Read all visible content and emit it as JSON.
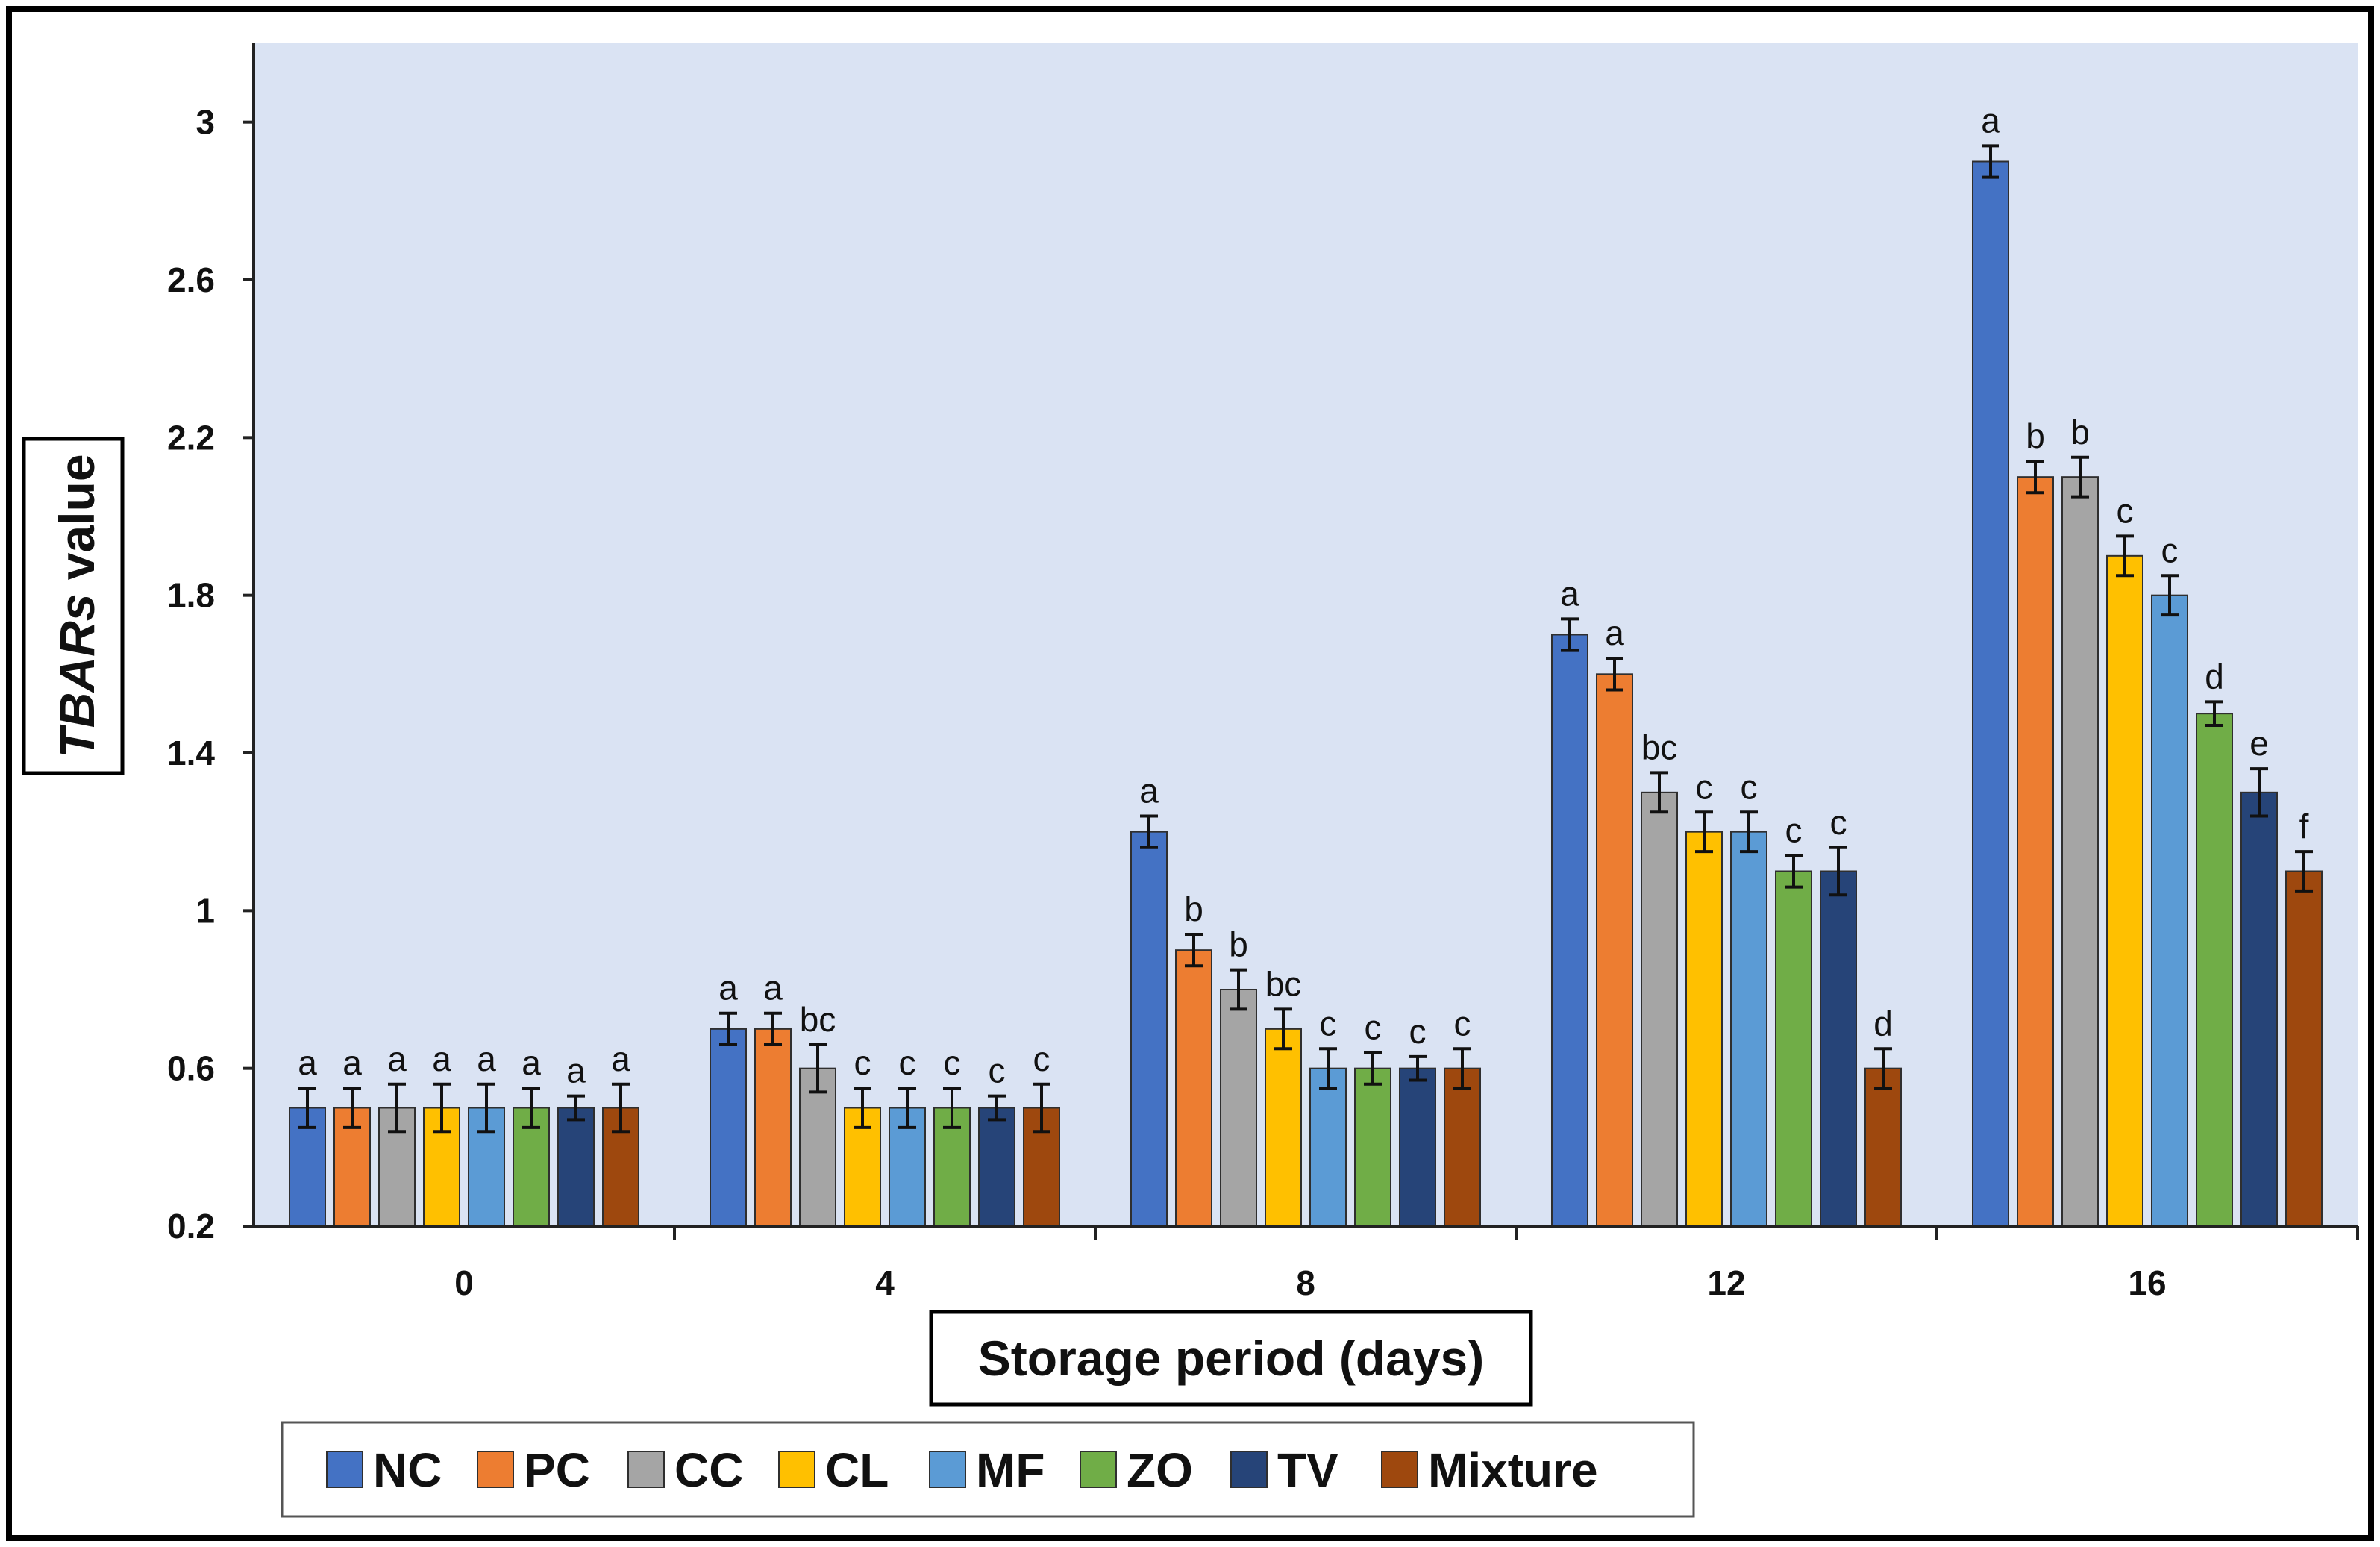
{
  "chart_data": {
    "type": "bar",
    "title": "",
    "xlabel": "Storage period (days)",
    "ylabel_main": "TBARs",
    "ylabel_suffix": " value",
    "ylim": [
      0.2,
      3.2
    ],
    "yticks": [
      0.2,
      0.6,
      1,
      1.4,
      1.8,
      2.2,
      2.6,
      3
    ],
    "ytick_labels": [
      "0.2",
      "0.6",
      "1",
      "1.4",
      "1.8",
      "2.2",
      "2.6",
      "3"
    ],
    "categories": [
      "0",
      "4",
      "8",
      "12",
      "16"
    ],
    "legend_position": "bottom",
    "plot_background": "#dae3f3",
    "series": [
      {
        "name": "NC",
        "color": "#4472c4",
        "values": [
          0.5,
          0.7,
          1.2,
          1.7,
          2.9
        ],
        "errors": [
          0.05,
          0.04,
          0.04,
          0.04,
          0.04
        ],
        "letters": [
          "a",
          "a",
          "a",
          "a",
          "a"
        ]
      },
      {
        "name": "PC",
        "color": "#ed7d31",
        "values": [
          0.5,
          0.7,
          0.9,
          1.6,
          2.1
        ],
        "errors": [
          0.05,
          0.04,
          0.04,
          0.04,
          0.04
        ],
        "letters": [
          "a",
          "a",
          "b",
          "a",
          "b"
        ]
      },
      {
        "name": "CC",
        "color": "#a5a5a5",
        "values": [
          0.5,
          0.6,
          0.8,
          1.3,
          2.1
        ],
        "errors": [
          0.06,
          0.06,
          0.05,
          0.05,
          0.05
        ],
        "letters": [
          "a",
          "bc",
          "b",
          "bc",
          "b"
        ]
      },
      {
        "name": "CL",
        "color": "#ffc000",
        "values": [
          0.5,
          0.5,
          0.7,
          1.2,
          1.9
        ],
        "errors": [
          0.06,
          0.05,
          0.05,
          0.05,
          0.05
        ],
        "letters": [
          "a",
          "c",
          "bc",
          "c",
          "c"
        ]
      },
      {
        "name": "MF",
        "color": "#5b9bd5",
        "values": [
          0.5,
          0.5,
          0.6,
          1.2,
          1.8
        ],
        "errors": [
          0.06,
          0.05,
          0.05,
          0.05,
          0.05
        ],
        "letters": [
          "a",
          "c",
          "c",
          "c",
          "c"
        ]
      },
      {
        "name": "ZO",
        "color": "#70ad47",
        "values": [
          0.5,
          0.5,
          0.6,
          1.1,
          1.5
        ],
        "errors": [
          0.05,
          0.05,
          0.04,
          0.04,
          0.03
        ],
        "letters": [
          "a",
          "c",
          "c",
          "c",
          "d"
        ]
      },
      {
        "name": "TV",
        "color": "#264478",
        "values": [
          0.5,
          0.5,
          0.6,
          1.1,
          1.3
        ],
        "errors": [
          0.03,
          0.03,
          0.03,
          0.06,
          0.06
        ],
        "letters": [
          "a",
          "c",
          "c",
          "c",
          "e"
        ]
      },
      {
        "name": "Mixture",
        "color": "#9e480e",
        "values": [
          0.5,
          0.5,
          0.6,
          0.6,
          1.1
        ],
        "errors": [
          0.06,
          0.06,
          0.05,
          0.05,
          0.05
        ],
        "letters": [
          "a",
          "c",
          "c",
          "d",
          "f"
        ]
      }
    ]
  }
}
